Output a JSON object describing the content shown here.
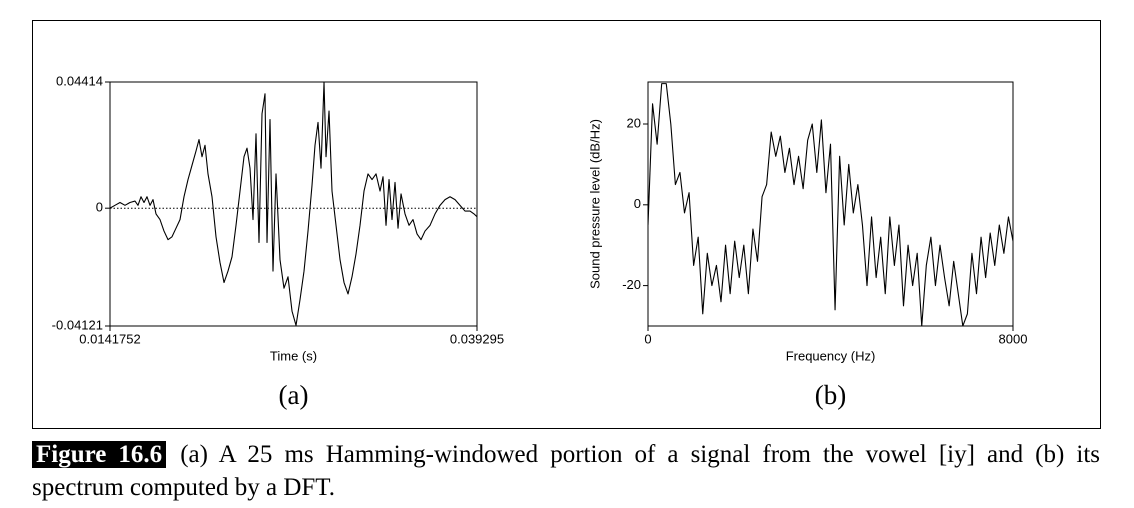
{
  "chart_data": [
    {
      "type": "line",
      "panel_label": "(a)",
      "xlabel": "Time (s)",
      "xlim": [
        0.0141752,
        0.039295
      ],
      "xticks": [
        0.0141752,
        0.039295
      ],
      "ylim": [
        -0.04121,
        0.04414
      ],
      "yticks": [
        -0.04121,
        0,
        0.04414
      ],
      "zero_line": true,
      "color": "#000000",
      "x": [
        0.014175,
        0.014517,
        0.01486,
        0.015202,
        0.015544,
        0.015886,
        0.016092,
        0.016297,
        0.016502,
        0.016708,
        0.016913,
        0.017119,
        0.017324,
        0.017598,
        0.017871,
        0.018145,
        0.018419,
        0.018693,
        0.018967,
        0.01924,
        0.019514,
        0.019788,
        0.020062,
        0.020267,
        0.020473,
        0.020678,
        0.020883,
        0.021157,
        0.021431,
        0.021705,
        0.021979,
        0.022252,
        0.022526,
        0.0228,
        0.023074,
        0.023348,
        0.023553,
        0.023758,
        0.023964,
        0.024169,
        0.024374,
        0.02458,
        0.024785,
        0.024922,
        0.025127,
        0.025332,
        0.025538,
        0.025812,
        0.026085,
        0.026359,
        0.026633,
        0.026907,
        0.027181,
        0.027455,
        0.027728,
        0.028002,
        0.028207,
        0.028413,
        0.028618,
        0.028824,
        0.028961,
        0.029166,
        0.029371,
        0.029645,
        0.029919,
        0.030193,
        0.030467,
        0.03074,
        0.031014,
        0.031288,
        0.031562,
        0.031836,
        0.03211,
        0.032383,
        0.032657,
        0.032862,
        0.033068,
        0.033273,
        0.033478,
        0.033684,
        0.033889,
        0.034095,
        0.034368,
        0.034642,
        0.034916,
        0.03519,
        0.035464,
        0.035737,
        0.03608,
        0.036422,
        0.036764,
        0.037106,
        0.037448,
        0.037791,
        0.038133,
        0.038475,
        0.038817,
        0.039091,
        0.039295
      ],
      "values": [
        0,
        0.001,
        0.002,
        0.001,
        0.002,
        0.0025,
        0.001,
        0.004,
        0.002,
        0.004,
        0.001,
        0.003,
        -0.002,
        -0.004,
        -0.008,
        -0.011,
        -0.01,
        -0.007,
        -0.004,
        0.004,
        0.01,
        0.015,
        0.02,
        0.024,
        0.018,
        0.022,
        0.012,
        0.004,
        -0.01,
        -0.019,
        -0.026,
        -0.022,
        -0.017,
        -0.006,
        0.006,
        0.018,
        0.021,
        0.014,
        -0.004,
        0.026,
        -0.012,
        0.033,
        0.04,
        -0.012,
        0.031,
        -0.022,
        0.012,
        -0.018,
        -0.028,
        -0.024,
        -0.036,
        -0.041,
        -0.032,
        -0.022,
        -0.008,
        0.008,
        0.022,
        0.03,
        0.014,
        0.044,
        0.018,
        0.034,
        0.006,
        -0.006,
        -0.018,
        -0.026,
        -0.03,
        -0.024,
        -0.016,
        -0.006,
        0.006,
        0.012,
        0.01,
        0.012,
        0.006,
        0.011,
        -0.006,
        0.01,
        -0.004,
        0.009,
        -0.007,
        0.005,
        -0.002,
        -0.006,
        -0.004,
        -0.009,
        -0.011,
        -0.008,
        -0.006,
        -0.002,
        0.001,
        0.003,
        0.004,
        0.003,
        0.001,
        -0.001,
        -0.001,
        -0.002,
        -0.003
      ]
    },
    {
      "type": "line",
      "panel_label": "(b)",
      "xlabel": "Frequency (Hz)",
      "ylabel": "Sound pressure level (dB/Hz)",
      "xlim": [
        0,
        8000
      ],
      "xticks": [
        0,
        8000
      ],
      "ylim": [
        -30,
        30.4
      ],
      "yticks": [
        -20,
        0,
        20
      ],
      "color": "#000000",
      "x": [
        0,
        100,
        200,
        300,
        400,
        500,
        600,
        700,
        800,
        900,
        1000,
        1100,
        1200,
        1300,
        1400,
        1500,
        1600,
        1700,
        1800,
        1900,
        2000,
        2100,
        2200,
        2300,
        2400,
        2500,
        2600,
        2700,
        2800,
        2900,
        3000,
        3100,
        3200,
        3300,
        3400,
        3500,
        3600,
        3700,
        3800,
        3900,
        4000,
        4100,
        4200,
        4300,
        4400,
        4500,
        4600,
        4700,
        4800,
        4900,
        5000,
        5100,
        5200,
        5300,
        5400,
        5500,
        5600,
        5700,
        5800,
        5900,
        6000,
        6100,
        6200,
        6300,
        6400,
        6500,
        6600,
        6700,
        6800,
        6900,
        7000,
        7100,
        7200,
        7300,
        7400,
        7500,
        7600,
        7700,
        7800,
        7900,
        8000
      ],
      "values": [
        -5,
        25,
        15,
        30,
        30,
        20,
        5,
        8,
        -2,
        3,
        -15,
        -8,
        -27,
        -12,
        -20,
        -15,
        -24,
        -10,
        -22,
        -9,
        -18,
        -10,
        -22,
        -6,
        -14,
        2,
        5,
        18,
        12,
        17,
        8,
        14,
        5,
        12,
        4,
        16,
        20,
        8,
        21,
        3,
        15,
        -26,
        12,
        -5,
        10,
        -2,
        5,
        -5,
        -20,
        -3,
        -18,
        -8,
        -22,
        -3,
        -15,
        -5,
        -25,
        -10,
        -20,
        -12,
        -30,
        -15,
        -8,
        -20,
        -10,
        -18,
        -25,
        -14,
        -22,
        -30,
        -27,
        -12,
        -22,
        -8,
        -18,
        -7,
        -15,
        -5,
        -12,
        -3,
        -9
      ]
    }
  ],
  "caption": {
    "label": "Figure 16.6",
    "text": "(a) A 25 ms Hamming-windowed portion of a signal from the vowel [iy] and (b) its spectrum computed by a DFT."
  }
}
